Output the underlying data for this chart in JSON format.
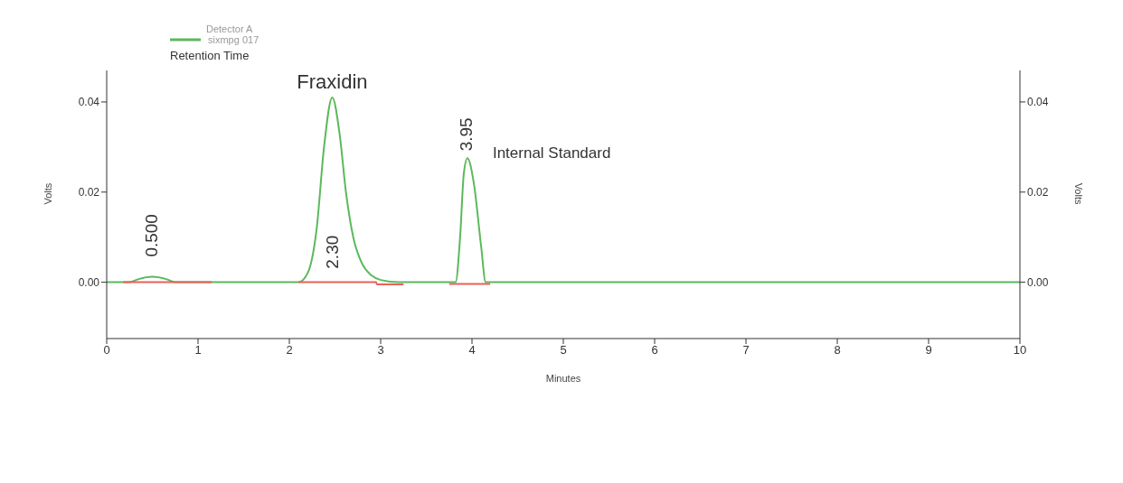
{
  "chart_data": {
    "type": "line",
    "xlabel": "Minutes",
    "ylabel": "Volts",
    "y2label": "Volts",
    "legend_title": "Detector A",
    "xlim": [
      0,
      10
    ],
    "xticks": [
      0,
      1,
      2,
      3,
      4,
      5,
      6,
      7,
      8,
      9,
      10
    ],
    "ylim": [
      -0.0125,
      0.047
    ],
    "yticks": [
      {
        "value": 0,
        "label": "0.00"
      },
      {
        "value": 0.02,
        "label": "0.02"
      },
      {
        "value": 0.04,
        "label": "0.04"
      }
    ],
    "y2lim": [
      -0.0125,
      0.047
    ],
    "y2ticks": [
      {
        "value": 0,
        "label": "0.00"
      },
      {
        "value": 0.02,
        "label": "0.02"
      },
      {
        "value": 0.04,
        "label": "0.04"
      }
    ],
    "grid": false,
    "legend": "top left",
    "marker": "none",
    "line_style": "solid",
    "series": [
      {
        "name": "sixmpg 017",
        "color": "#5cb85c",
        "x": [
          0,
          0.25,
          0.35,
          0.5,
          0.65,
          0.75,
          2.1,
          2.2,
          2.3,
          2.38,
          2.47,
          2.55,
          2.62,
          2.7,
          2.8,
          2.9,
          3.0,
          3.2,
          3.82,
          3.87,
          3.91,
          3.95,
          4.02,
          4.1,
          4.15,
          10
        ],
        "values": [
          0,
          0,
          0.0007,
          0.0012,
          0.0007,
          0,
          0,
          0.002,
          0.012,
          0.03,
          0.041,
          0.033,
          0.02,
          0.01,
          0.004,
          0.0015,
          0.0005,
          0,
          0,
          0.01,
          0.024,
          0.0275,
          0.022,
          0.008,
          0,
          0
        ]
      },
      {
        "color": "#e8615a",
        "x": [
          0.18,
          1.15,
          1.16,
          2.1,
          2.95,
          2.96,
          3.25,
          3.26,
          3.75,
          4.2
        ],
        "values": [
          0,
          0,
          null,
          0,
          0,
          -0.0005,
          -0.0005,
          null,
          -0.0004,
          -0.0004
        ]
      }
    ],
    "annotations": [
      {
        "text": "0.500",
        "x": 0.5,
        "y": 0.0012
      },
      {
        "text": "2.30",
        "x": 2.3,
        "y": 0.012
      },
      {
        "text": "3.95",
        "x": 3.95,
        "y": 0.0275
      },
      {
        "text": "Fraxidin",
        "x": 2.47,
        "y": 0.041
      },
      {
        "text": "Internal Standard",
        "x": 3.95,
        "y": 0.0275
      },
      "Retention Time"
    ]
  }
}
